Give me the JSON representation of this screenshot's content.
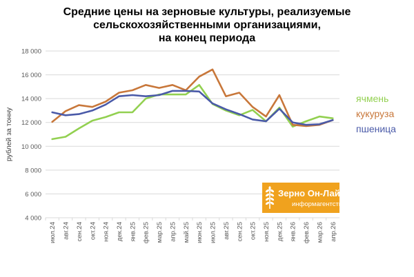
{
  "chart_data": {
    "type": "line",
    "title_lines": [
      "Средние цены на зерновые культуры, реализуемые",
      "сельскохозяйственными организациями,",
      "на конец периода"
    ],
    "ylabel": "рублей за тонну",
    "ylim": [
      4000,
      18000
    ],
    "yticks": [
      "4 000",
      "6 000",
      "8 000",
      "10 000",
      "12 000",
      "14 000",
      "16 000",
      "18 000"
    ],
    "ytick_values": [
      4000,
      6000,
      8000,
      10000,
      12000,
      14000,
      16000,
      18000
    ],
    "grid": true,
    "legend_placement": "right",
    "categories": [
      "июл.24",
      "авг.24",
      "сен.24",
      "окт.24",
      "ноя.24",
      "дек.24",
      "янв.25",
      "фев.25",
      "мар.25",
      "апр.25",
      "май.25",
      "июн.25",
      "июл.25",
      "авг.25",
      "сен.25",
      "окт.25",
      "ноя.25",
      "дек.25",
      "янв.26",
      "фев.26",
      "мар.26",
      "апр.26"
    ],
    "series": [
      {
        "name": "ячмень",
        "color": "#92d050",
        "values": [
          10600,
          10800,
          11500,
          12150,
          12450,
          12850,
          12850,
          14000,
          14350,
          14350,
          14350,
          15150,
          13550,
          13000,
          12600,
          13050,
          12100,
          13250,
          11650,
          12100,
          12500,
          12350
        ]
      },
      {
        "name": "кукуруза",
        "color": "#c8773a",
        "values": [
          12050,
          12950,
          13450,
          13300,
          13750,
          14500,
          14700,
          15150,
          14900,
          15150,
          14700,
          15850,
          16450,
          14200,
          14500,
          13300,
          12500,
          14300,
          11800,
          11700,
          11800,
          12200
        ]
      },
      {
        "name": "пшеница",
        "color": "#4a5aa8",
        "values": [
          12850,
          12600,
          12700,
          13000,
          13500,
          14200,
          14300,
          14200,
          14300,
          14650,
          14650,
          14600,
          13600,
          13100,
          12700,
          12250,
          12100,
          13150,
          12000,
          11800,
          11850,
          12200
        ]
      }
    ]
  },
  "logo": {
    "name": "Зерно Он-Лайн",
    "subtitle": "информагентство",
    "color": "#f0a21e"
  }
}
